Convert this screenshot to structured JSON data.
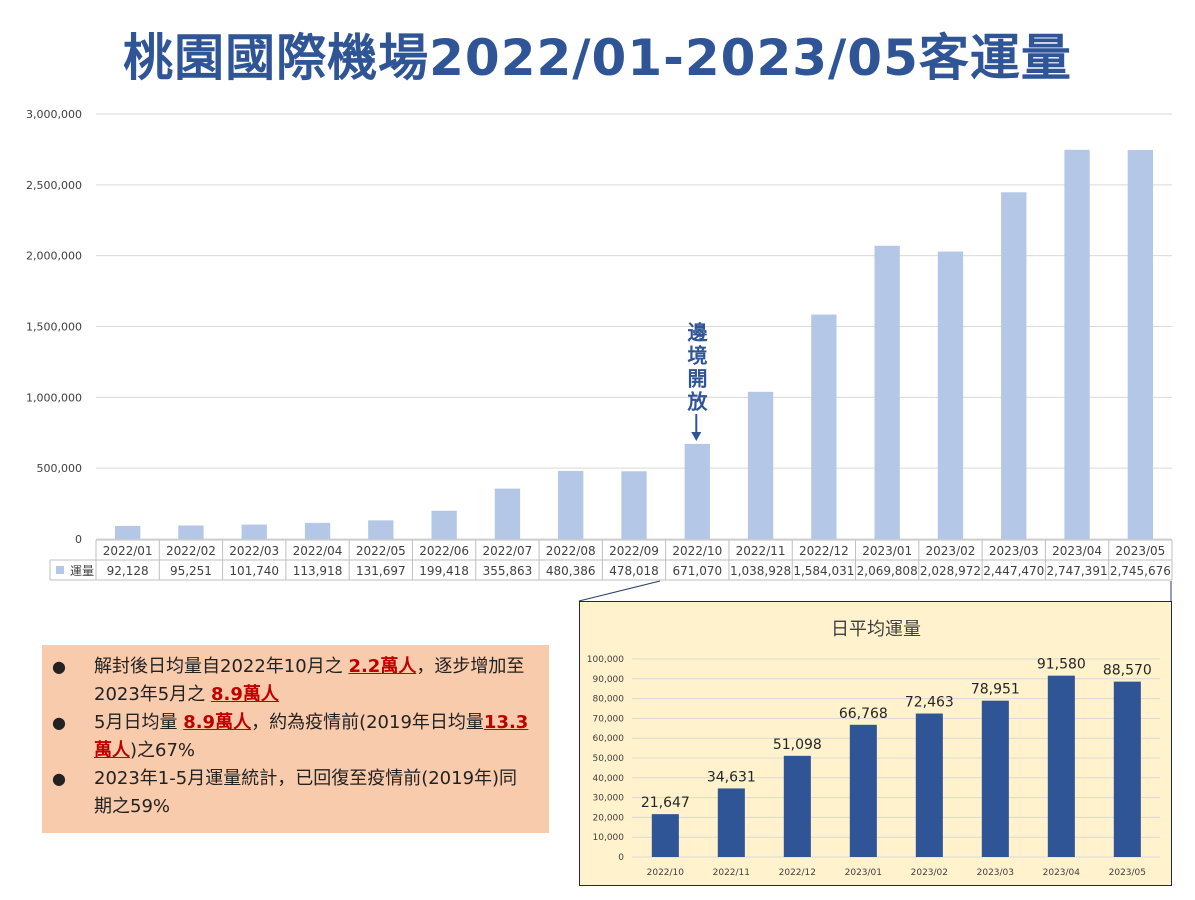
{
  "title": "桃園國際機場2022/01-2023/05客運量",
  "chart_data": [
    {
      "type": "bar",
      "title": "",
      "ylim": [
        0,
        3000000
      ],
      "yticks": [
        0,
        500000,
        1000000,
        1500000,
        2000000,
        2500000,
        3000000
      ],
      "grid": true,
      "data_table": true,
      "categories": [
        "2022/01",
        "2022/02",
        "2022/03",
        "2022/04",
        "2022/05",
        "2022/06",
        "2022/07",
        "2022/08",
        "2022/09",
        "2022/10",
        "2022/11",
        "2022/12",
        "2023/01",
        "2023/02",
        "2023/03",
        "2023/04",
        "2023/05"
      ],
      "series": [
        {
          "name": "運量",
          "color": "#b4c7e7",
          "values": [
            92128,
            95251,
            101740,
            113918,
            131697,
            199418,
            355863,
            480386,
            478018,
            671070,
            1038928,
            1584031,
            2069808,
            2028972,
            2447470,
            2747391,
            2745676
          ]
        }
      ],
      "annotation": {
        "text": "邊境開放",
        "category": "2022/10"
      }
    },
    {
      "type": "bar",
      "title": "日平均運量",
      "ylim": [
        0,
        100000
      ],
      "yticks": [
        0,
        10000,
        20000,
        30000,
        40000,
        50000,
        60000,
        70000,
        80000,
        90000,
        100000
      ],
      "grid": true,
      "categories": [
        "2022/10",
        "2022/11",
        "2022/12",
        "2023/01",
        "2023/02",
        "2023/03",
        "2023/04",
        "2023/05"
      ],
      "series": [
        {
          "color": "#2f5597",
          "values": [
            21647,
            34631,
            51098,
            66768,
            72463,
            78951,
            91580,
            88570
          ]
        }
      ],
      "background": "#fff2cc"
    }
  ],
  "notes": [
    {
      "parts": [
        {
          "t": "解封後日均量自2022年10月之 "
        },
        {
          "t": "2.2萬人",
          "hl": true
        },
        {
          "t": "，逐步增加至 2023年5月之 "
        },
        {
          "t": "8.9萬人",
          "hl": true
        }
      ]
    },
    {
      "parts": [
        {
          "t": "5月日均量 "
        },
        {
          "t": "8.9萬人",
          "hl": true
        },
        {
          "t": "，約為疫情前(2019年日均量"
        },
        {
          "t": "13.3萬人",
          "hl": true
        },
        {
          "t": ")之67%"
        }
      ]
    },
    {
      "parts": [
        {
          "t": "2023年1-5月運量統計，已回復至疫情前(2019年)同期之59%"
        }
      ]
    }
  ]
}
